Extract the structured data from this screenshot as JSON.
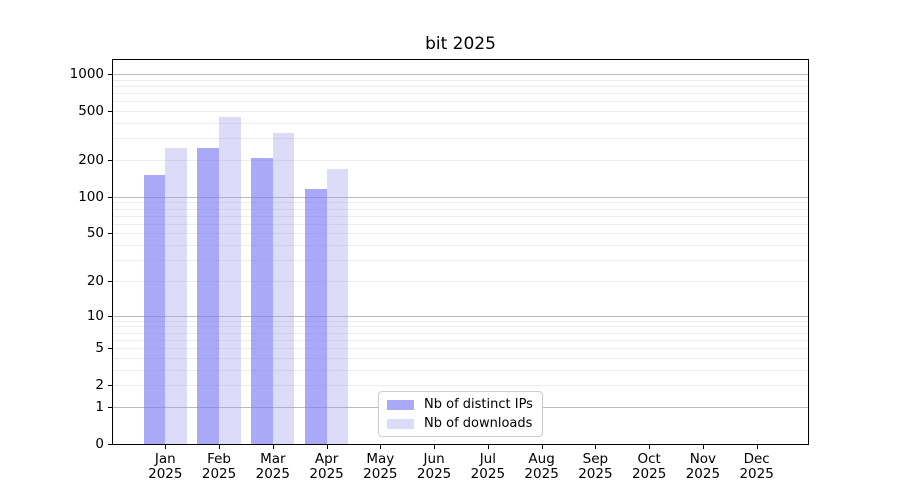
{
  "chart_data": {
    "type": "bar",
    "title": "bit 2025",
    "x_labels": [
      [
        "Jan",
        "2025"
      ],
      [
        "Feb",
        "2025"
      ],
      [
        "Mar",
        "2025"
      ],
      [
        "Apr",
        "2025"
      ],
      [
        "May",
        "2025"
      ],
      [
        "Jun",
        "2025"
      ],
      [
        "Jul",
        "2025"
      ],
      [
        "Aug",
        "2025"
      ],
      [
        "Sep",
        "2025"
      ],
      [
        "Oct",
        "2025"
      ],
      [
        "Nov",
        "2025"
      ],
      [
        "Dec",
        "2025"
      ]
    ],
    "series": [
      {
        "name": "Nb of distinct IPs",
        "color": "#a9a9f8",
        "fill": "rgba(125,125,244,0.66)",
        "values": [
          152,
          250,
          207,
          116,
          null,
          null,
          null,
          null,
          null,
          null,
          null,
          null
        ]
      },
      {
        "name": "Nb of downloads",
        "color": "#dcdcf9",
        "fill": "rgba(158,158,238,0.36)",
        "values": [
          252,
          450,
          330,
          170,
          null,
          null,
          null,
          null,
          null,
          null,
          null,
          null
        ]
      }
    ],
    "y_ticks": [
      0,
      1,
      2,
      5,
      10,
      20,
      50,
      100,
      200,
      500,
      1000
    ],
    "y_scale": "log1p",
    "ylim": [
      0,
      1300
    ],
    "grid": {
      "major_values": [
        1,
        10,
        100,
        1000
      ],
      "minor_values": [
        2,
        3,
        4,
        5,
        6,
        7,
        8,
        9,
        20,
        30,
        40,
        50,
        60,
        70,
        80,
        90,
        200,
        300,
        400,
        500,
        600,
        700,
        800,
        900
      ],
      "major_color": "#bbbbbb",
      "minor_color": "#ececec"
    },
    "legend_position": "lower center"
  }
}
